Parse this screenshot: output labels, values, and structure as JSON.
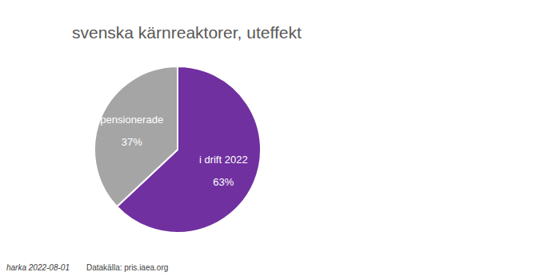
{
  "chart_data": {
    "type": "pie",
    "title": "svenska kärnreaktorer, uteffekt",
    "categories": [
      "i drift 2022",
      "pensionerade"
    ],
    "values": [
      63,
      37
    ],
    "value_labels": [
      "63%",
      "37%"
    ],
    "colors": [
      "#7030a0",
      "#a5a5a5"
    ],
    "data_labels": true,
    "annotations": [
      "harka 2022-08-01",
      "Datakälla: pris.iaea.org"
    ]
  }
}
